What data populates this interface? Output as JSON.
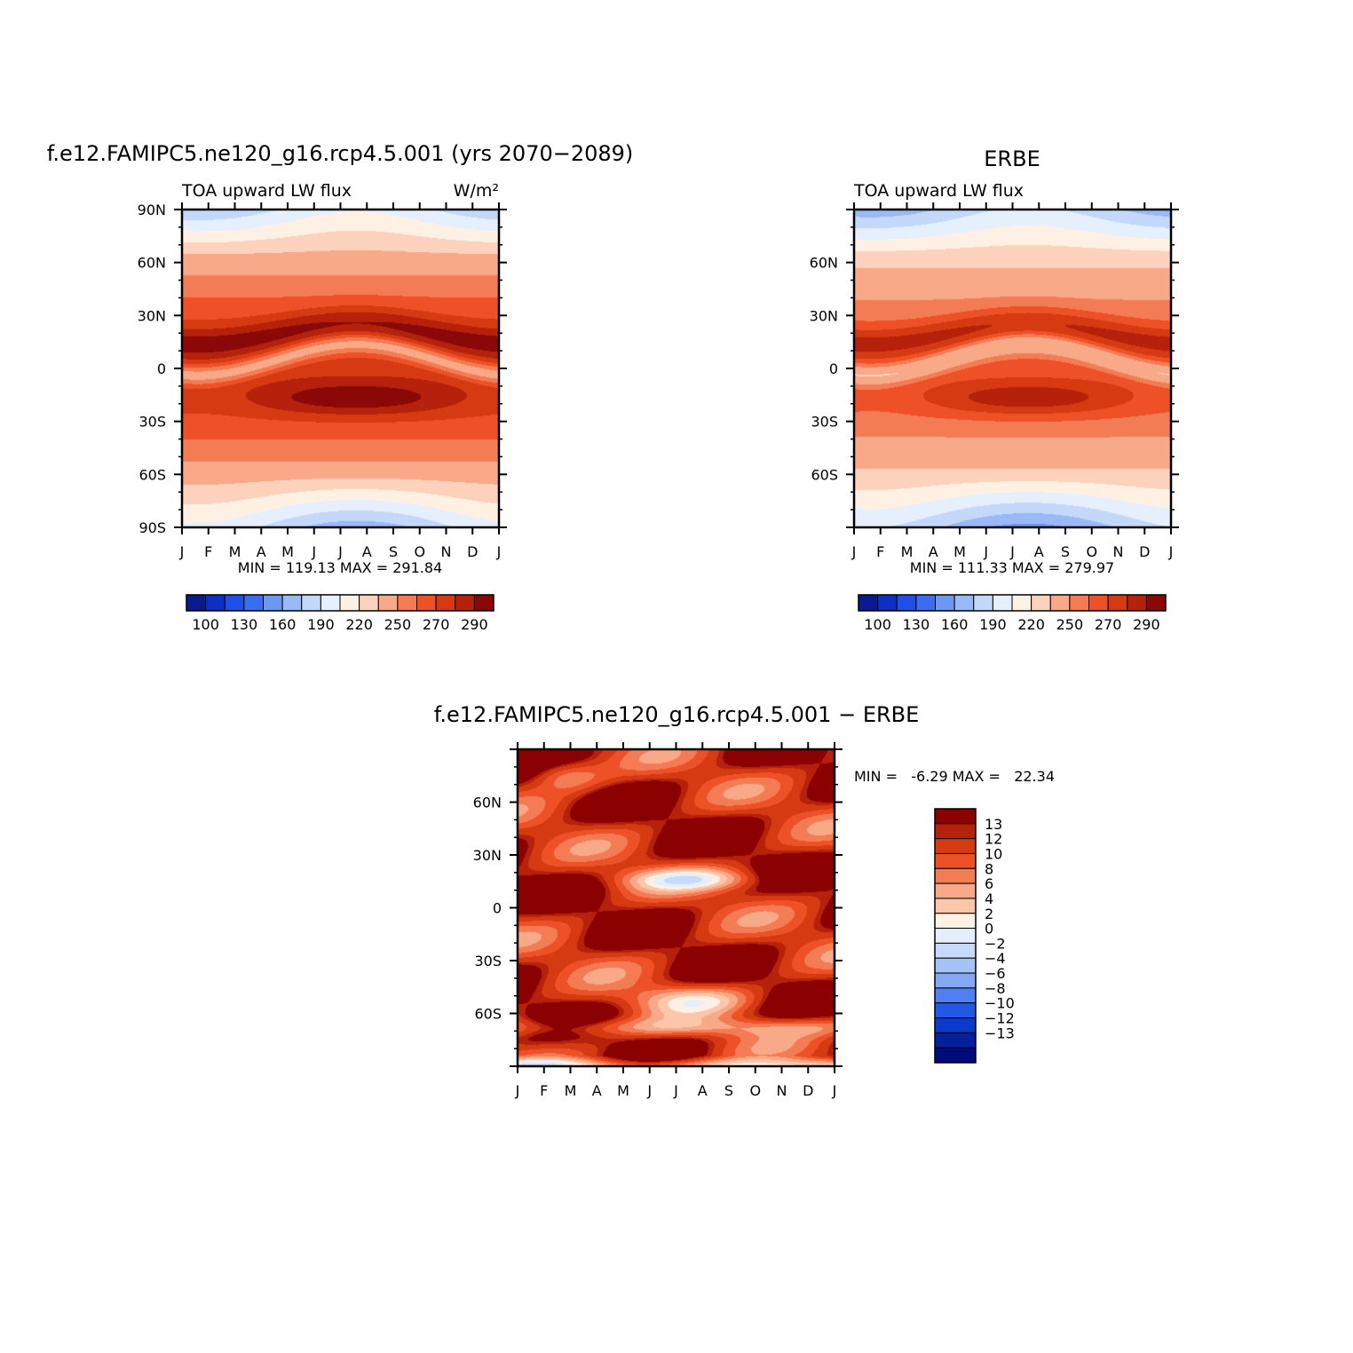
{
  "chart_data": [
    {
      "type": "heatmap",
      "title": "f.e12.FAMIPC5.ne120_g16.rcp4.5.001 (yrs 2070−2089)",
      "subtitle_left": "TOA upward LW flux",
      "units": "W/m²",
      "x": [
        "J",
        "F",
        "M",
        "A",
        "M",
        "J",
        "J",
        "A",
        "S",
        "O",
        "N",
        "D",
        "J"
      ],
      "ylim": [
        -90,
        90
      ],
      "yticks": [
        90,
        60,
        30,
        0,
        -30,
        -60,
        -90
      ],
      "ytick_labels": [
        "90N",
        "60N",
        "30N",
        "0",
        "30S",
        "60S",
        "90S"
      ],
      "min_max_text": "MIN = 119.13 MAX = 291.84",
      "min": 119.13,
      "max": 291.84,
      "colorbar_labels": [
        "100",
        "130",
        "160",
        "190",
        "220",
        "250",
        "270",
        "290"
      ]
    },
    {
      "type": "heatmap",
      "title": "ERBE",
      "subtitle_left": "TOA upward LW flux",
      "x": [
        "J",
        "F",
        "M",
        "A",
        "M",
        "J",
        "J",
        "A",
        "S",
        "O",
        "N",
        "D",
        "J"
      ],
      "ylim": [
        -90,
        90
      ],
      "yticks": [
        60,
        30,
        0,
        -30,
        -60
      ],
      "ytick_labels": [
        "60N",
        "30N",
        "0",
        "30S",
        "60S"
      ],
      "min_max_text": "MIN = 111.33 MAX = 279.97",
      "min": 111.33,
      "max": 279.97,
      "colorbar_labels": [
        "100",
        "130",
        "160",
        "190",
        "220",
        "250",
        "270",
        "290"
      ]
    },
    {
      "type": "heatmap",
      "title": "f.e12.FAMIPC5.ne120_g16.rcp4.5.001 − ERBE",
      "x": [
        "J",
        "F",
        "M",
        "A",
        "M",
        "J",
        "J",
        "A",
        "S",
        "O",
        "N",
        "D",
        "J"
      ],
      "ylim": [
        -90,
        90
      ],
      "yticks": [
        60,
        30,
        0,
        -30,
        -60
      ],
      "ytick_labels": [
        "60N",
        "30N",
        "0",
        "30S",
        "60S"
      ],
      "min_max_text": "MIN =   -6.29 MAX =   22.34",
      "min": -6.29,
      "max": 22.34,
      "colorbar_labels": [
        "13",
        "12",
        "10",
        "8",
        "6",
        "4",
        "2",
        "0",
        "−2",
        "−4",
        "−6",
        "−8",
        "−10",
        "−12",
        "−13"
      ]
    }
  ],
  "palettes": {
    "abs": [
      "#0a1a8c",
      "#0f2fc4",
      "#1f4fe8",
      "#3a6df0",
      "#6c98f2",
      "#9ab9f7",
      "#c4d8fa",
      "#e6effd",
      "#fff0e4",
      "#fcd2bc",
      "#f8a987",
      "#f47c54",
      "#ee5128",
      "#d63a12",
      "#b5210a",
      "#8a0808"
    ],
    "diff": [
      "#8b0000",
      "#b5210a",
      "#d63a12",
      "#ee5128",
      "#f47c54",
      "#f8a987",
      "#fcc6ab",
      "#fff0e4",
      "#e4eefd",
      "#c7dafa",
      "#a6c3f7",
      "#84a8f3",
      "#4f7ff0",
      "#2358e6",
      "#0b39cc",
      "#041f9c",
      "#000a7a"
    ]
  }
}
